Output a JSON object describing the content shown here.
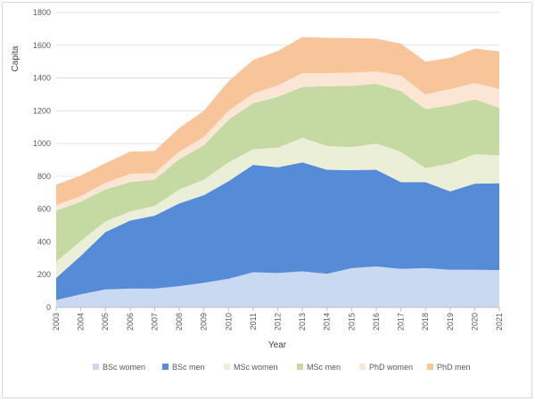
{
  "chart_data": {
    "type": "area",
    "stacked": true,
    "xlabel": "Year",
    "ylabel": "Capita",
    "ylim": [
      0,
      1800
    ],
    "yticks": [
      0,
      200,
      400,
      600,
      800,
      1000,
      1200,
      1400,
      1600,
      1800
    ],
    "x": [
      "2003",
      "2004",
      "2005",
      "2006",
      "2007",
      "2008",
      "2009",
      "2010",
      "2011",
      "2012",
      "2013",
      "2014",
      "2015",
      "2016",
      "2017",
      "2018",
      "2019",
      "2020",
      "2021"
    ],
    "grid": true,
    "legend_position": "bottom",
    "series": [
      {
        "name": "BSc women",
        "color": "#c9d9f2",
        "values": [
          45,
          80,
          110,
          115,
          115,
          130,
          150,
          175,
          215,
          210,
          220,
          205,
          240,
          250,
          235,
          240,
          230,
          230,
          228
        ]
      },
      {
        "name": "BSc men",
        "color": "#568bd8",
        "values": [
          135,
          235,
          350,
          415,
          445,
          505,
          535,
          595,
          655,
          645,
          665,
          635,
          598,
          590,
          530,
          525,
          478,
          525,
          530
        ]
      },
      {
        "name": "MSc women",
        "color": "#ecefd8",
        "values": [
          100,
          90,
          65,
          55,
          60,
          85,
          95,
          115,
          95,
          120,
          150,
          145,
          140,
          160,
          185,
          85,
          170,
          180,
          170
        ]
      },
      {
        "name": "MSc men",
        "color": "#c5d9a2",
        "values": [
          310,
          240,
          195,
          180,
          160,
          185,
          210,
          260,
          280,
          310,
          310,
          365,
          375,
          365,
          370,
          360,
          355,
          335,
          290
        ]
      },
      {
        "name": "PhD women",
        "color": "#fbe5d5",
        "values": [
          35,
          35,
          40,
          50,
          40,
          45,
          50,
          55,
          60,
          70,
          85,
          80,
          80,
          75,
          95,
          90,
          100,
          100,
          115
        ]
      },
      {
        "name": "PhD men",
        "color": "#f8c49a",
        "values": [
          125,
          125,
          120,
          135,
          135,
          145,
          160,
          180,
          205,
          210,
          220,
          215,
          210,
          200,
          195,
          200,
          190,
          210,
          230
        ]
      }
    ]
  }
}
